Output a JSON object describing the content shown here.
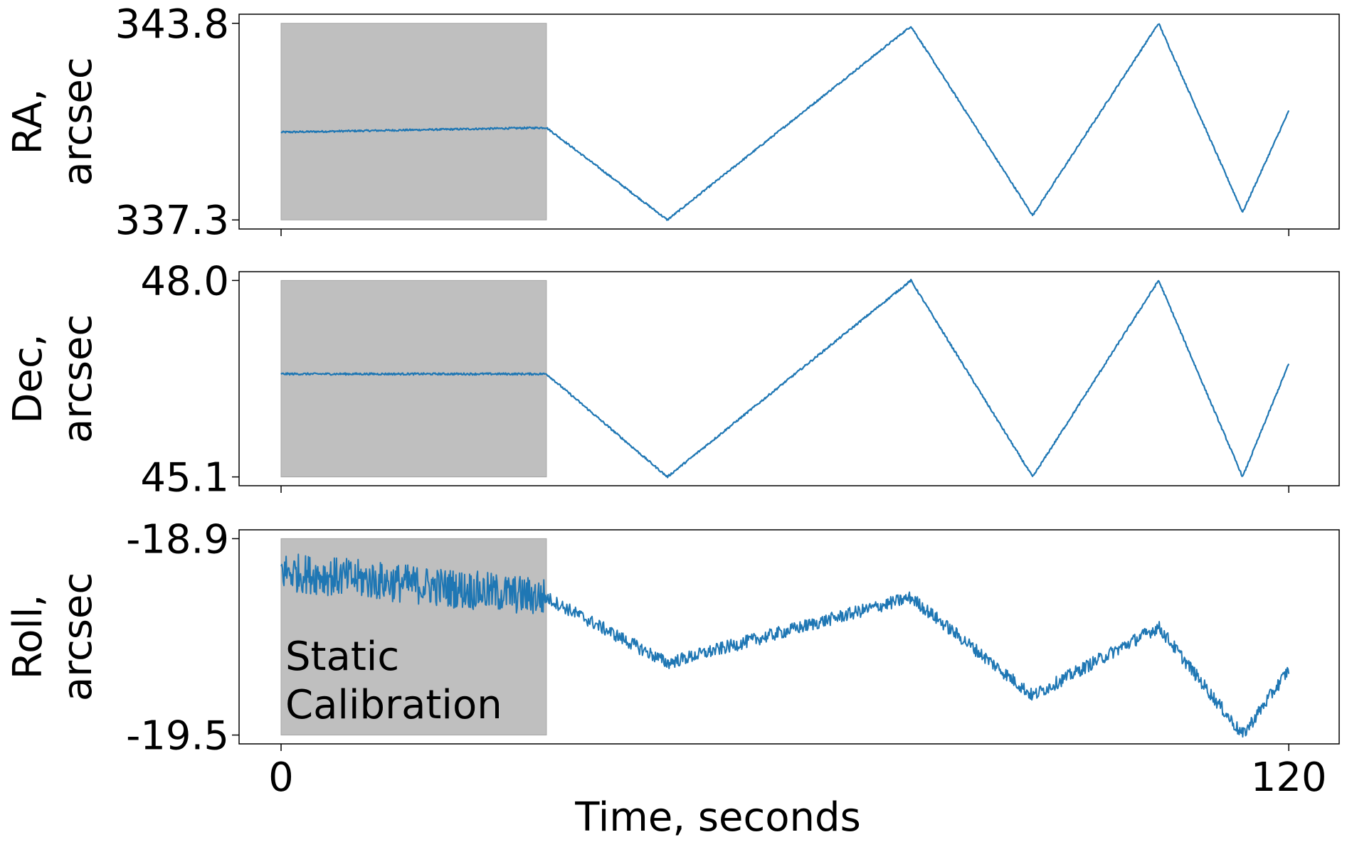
{
  "chart_data": {
    "type": "line",
    "xlabel": "Time, seconds",
    "xlim": [
      -5,
      126
    ],
    "xticks": [
      0,
      120
    ],
    "xtick_labels": [
      "0",
      "120"
    ],
    "line_color": "#1f77b4",
    "shade_color": "#bfbfbf",
    "calibration_window": {
      "x_start": 0,
      "x_end": 31.6,
      "label_lines": [
        "Static",
        "Calibration"
      ]
    },
    "panels": [
      {
        "id": "ra",
        "ylabel_lines": [
          "RA,",
          "arcsec"
        ],
        "ylim": [
          337.0,
          344.1
        ],
        "yticks": [
          343.8,
          337.3
        ],
        "ytick_labels": [
          "343.8",
          "337.3"
        ],
        "noise": 0.03,
        "series": {
          "x": [
            0,
            31.6,
            46,
            75,
            89.5,
            104.5,
            114.5,
            120
          ],
          "y": [
            340.2,
            340.35,
            337.3,
            343.7,
            337.45,
            343.8,
            337.55,
            340.9
          ]
        }
      },
      {
        "id": "dec",
        "ylabel_lines": [
          "Dec,",
          "arcsec"
        ],
        "ylim": [
          44.97,
          48.13
        ],
        "yticks": [
          48.0,
          45.1
        ],
        "ytick_labels": [
          "48.0",
          "45.1"
        ],
        "noise": 0.015,
        "series": {
          "x": [
            0,
            31.6,
            46,
            75,
            89.5,
            104.5,
            114.5,
            120
          ],
          "y": [
            46.62,
            46.62,
            45.1,
            48.0,
            45.1,
            48.0,
            45.1,
            46.77
          ]
        }
      },
      {
        "id": "roll",
        "ylabel_lines": [
          "Roll,",
          "arcsec"
        ],
        "ylim": [
          -19.527,
          -18.873
        ],
        "yticks": [
          -18.9,
          -19.5
        ],
        "ytick_labels": [
          "-18.9",
          "-19.5"
        ],
        "noise": 0.02,
        "calib_noise": 0.06,
        "series": {
          "x": [
            0,
            31.6,
            46,
            75,
            89.5,
            104.5,
            114.5,
            120
          ],
          "y": [
            -19.0,
            -19.08,
            -19.28,
            -19.08,
            -19.38,
            -19.17,
            -19.5,
            -19.3
          ]
        }
      }
    ]
  }
}
